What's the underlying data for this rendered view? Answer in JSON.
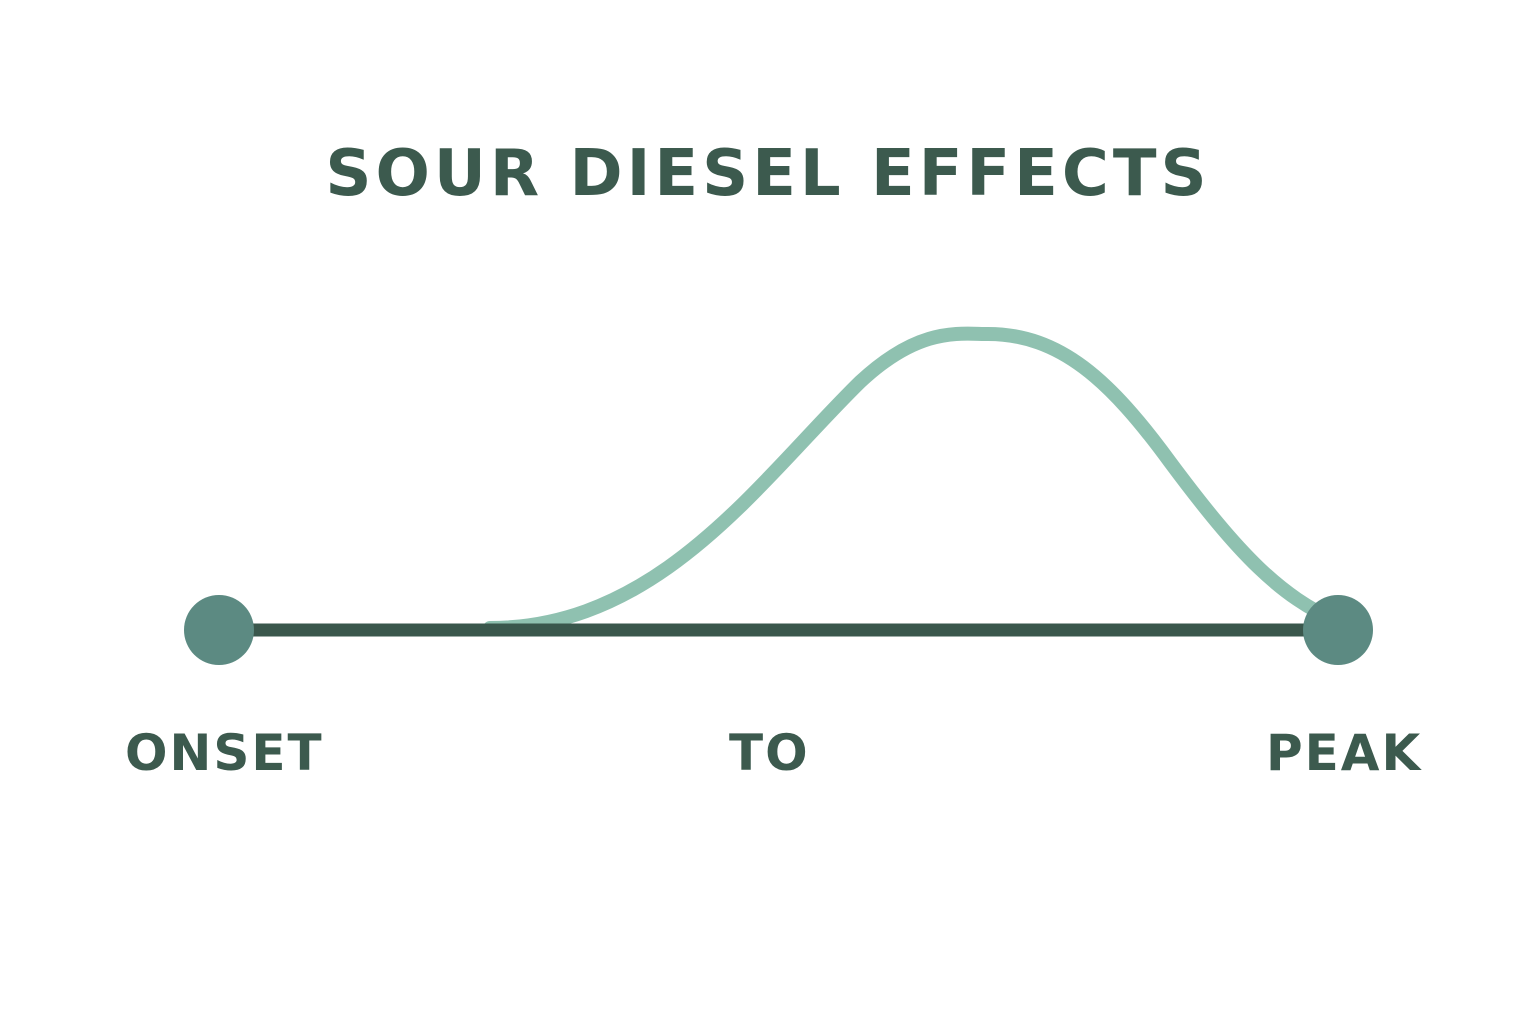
{
  "title": "SOUR DIESEL EFFECTS",
  "labels": {
    "start": "ONSET",
    "middle": "TO",
    "end": "PEAK"
  },
  "colors": {
    "text": "#3c5a4e",
    "axis": "#3a574c",
    "curve": "#8fc1b0",
    "endpoint": "#5c8a82"
  }
}
